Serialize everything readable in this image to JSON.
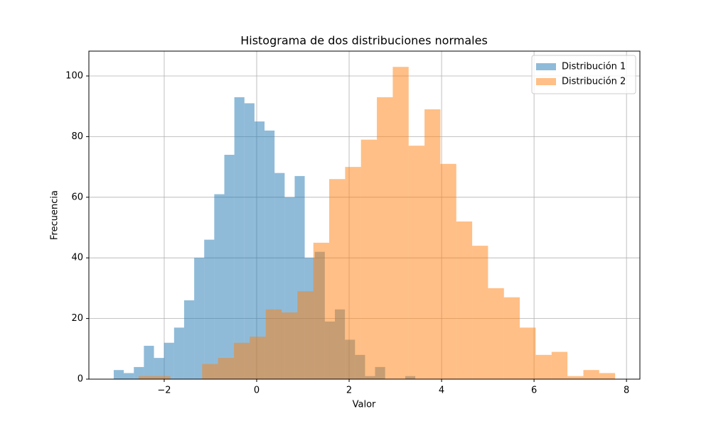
{
  "chart_data": {
    "type": "histogram",
    "title": "Histograma de dos distribuciones normales",
    "x_label": "Valor",
    "y_label": "Frecuencia",
    "series": [
      {
        "name": "Distribución 1",
        "color": "#1f77b4",
        "bins": [
          -3.092,
          -2.875,
          -2.657,
          -2.44,
          -2.222,
          -2.005,
          -1.787,
          -1.57,
          -1.352,
          -1.135,
          -0.918,
          -0.7,
          -0.483,
          -0.265,
          -0.048,
          0.17,
          0.387,
          0.605,
          0.822,
          1.039,
          1.257,
          1.474,
          1.692,
          1.909,
          2.127,
          2.344,
          2.561,
          2.779,
          2.996,
          3.214,
          3.431
        ],
        "values": [
          3,
          2,
          4,
          11,
          7,
          12,
          17,
          26,
          40,
          46,
          61,
          74,
          93,
          91,
          85,
          82,
          68,
          60,
          67,
          40,
          42,
          19,
          23,
          13,
          8,
          1,
          4,
          0,
          0,
          1
        ]
      },
      {
        "name": "Distribución 2",
        "color": "#ff7f0e",
        "bins": [
          -2.554,
          -2.21,
          -1.867,
          -1.523,
          -1.18,
          -0.836,
          -0.492,
          -0.149,
          0.195,
          0.538,
          0.882,
          1.226,
          1.569,
          1.913,
          2.256,
          2.6,
          2.944,
          3.287,
          3.631,
          3.974,
          4.318,
          4.662,
          5.005,
          5.349,
          5.692,
          6.036,
          6.38,
          6.723,
          7.067,
          7.41,
          7.754
        ],
        "values": [
          1,
          1,
          0,
          0,
          5,
          7,
          12,
          14,
          23,
          22,
          29,
          45,
          66,
          70,
          79,
          93,
          103,
          77,
          89,
          71,
          52,
          44,
          30,
          27,
          17,
          8,
          9,
          1,
          3,
          2
        ]
      }
    ],
    "opacity": 0.5,
    "xlim": [
      -3.63,
      8.29
    ],
    "xticks": [
      {
        "value": -2,
        "label": "−2"
      },
      0,
      2,
      4,
      6,
      8
    ],
    "ylim": [
      0,
      108.2
    ],
    "yticks": [
      0,
      20,
      40,
      60,
      80,
      100
    ],
    "grid": true,
    "legend": "upper right"
  }
}
